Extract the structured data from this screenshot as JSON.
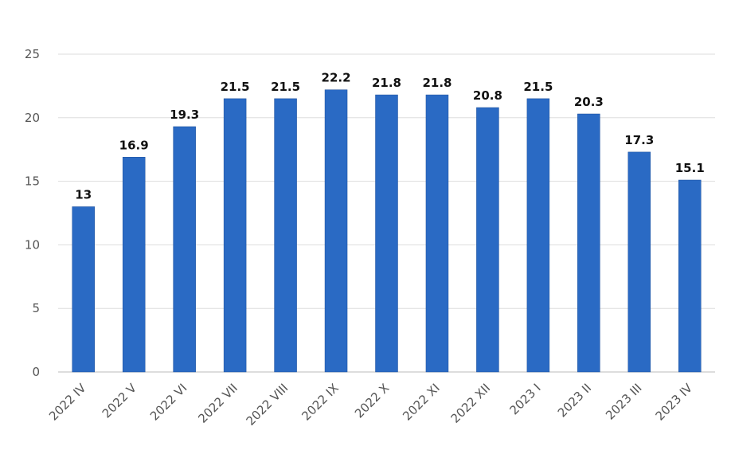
{
  "chart_data": {
    "type": "bar",
    "categories": [
      "2022 IV",
      "2022 V",
      "2022 VI",
      "2022 VII",
      "2022 VIII",
      "2022 IX",
      "2022 X",
      "2022 XI",
      "2022 XII",
      "2023 I",
      "2023 II",
      "2023 III",
      "2023 IV"
    ],
    "values": [
      13,
      16.9,
      19.3,
      21.5,
      21.5,
      22.2,
      21.8,
      21.8,
      20.8,
      21.5,
      20.3,
      17.3,
      15.1
    ],
    "value_labels": [
      "13",
      "16.9",
      "19.3",
      "21.5",
      "21.5",
      "22.2",
      "21.8",
      "21.8",
      "20.8",
      "21.5",
      "20.3",
      "17.3",
      "15.1"
    ],
    "title": "",
    "xlabel": "",
    "ylabel": "",
    "ylim": [
      0,
      25
    ],
    "yticks": [
      "0",
      "5",
      "10",
      "15",
      "20",
      "25"
    ],
    "grid": true,
    "bar_color": "#2a6ac4"
  }
}
